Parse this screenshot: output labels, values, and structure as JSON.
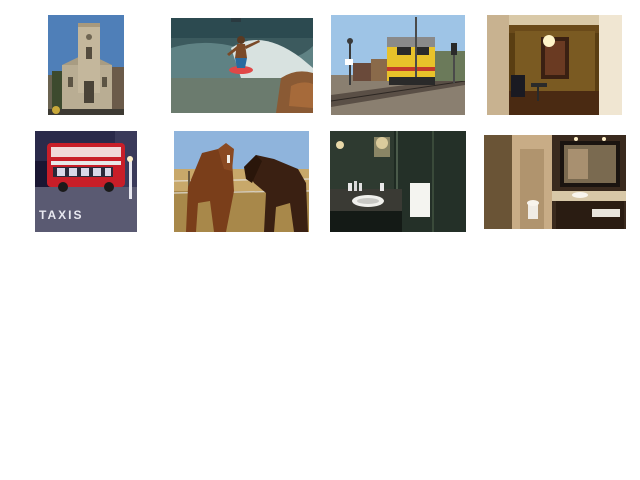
{
  "gallery": {
    "background": "#ffffff",
    "thumbnails": [
      {
        "id": "church",
        "subject": "church-tower-photo"
      },
      {
        "id": "surfer",
        "subject": "surfer-on-wave-photo"
      },
      {
        "id": "train",
        "subject": "freight-locomotive-photo"
      },
      {
        "id": "room",
        "subject": "dim-interior-room-photo"
      },
      {
        "id": "bus",
        "subject": "red-double-decker-bus-photo"
      },
      {
        "id": "horses",
        "subject": "two-horses-in-field-photo"
      },
      {
        "id": "sink",
        "subject": "dark-bathroom-sink-photo"
      },
      {
        "id": "bathroom",
        "subject": "hotel-bathroom-vanity-photo"
      }
    ],
    "signs": {
      "bus_lane": "TAXIS"
    }
  }
}
